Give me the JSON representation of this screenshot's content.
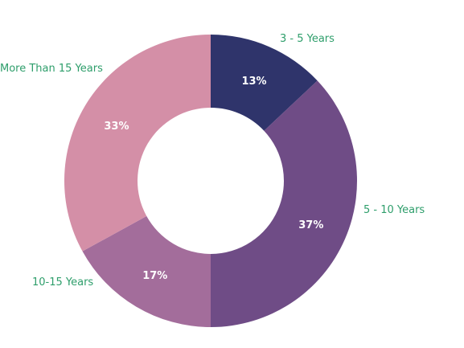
{
  "chart_data": {
    "type": "pie",
    "style": "donut",
    "start_angle_from_top": "clockwise",
    "slices": [
      {
        "label": "3 - 5 Years",
        "value": 13,
        "value_label": "13%",
        "color": "#2f346b"
      },
      {
        "label": "5 - 10 Years",
        "value": 37,
        "value_label": "37%",
        "color": "#6f4c86"
      },
      {
        "label": "10-15 Years",
        "value": 17,
        "value_label": "17%",
        "color": "#a36d9b"
      },
      {
        "label": "More Than 15 Years",
        "value": 33,
        "value_label": "33%",
        "color": "#d48fa7"
      }
    ],
    "label_color": "#2e9e6b",
    "value_label_color": "#ffffff"
  }
}
